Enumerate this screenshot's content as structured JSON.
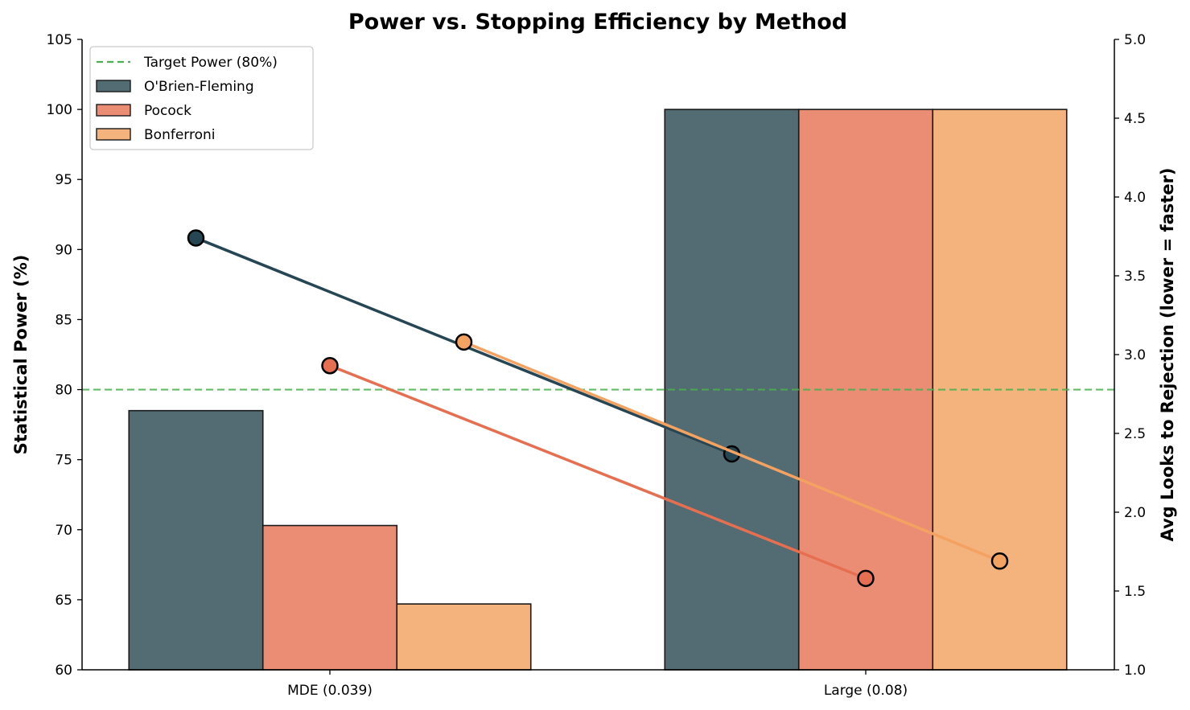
{
  "chart_data": {
    "type": "bar",
    "title": "Power vs. Stopping Efficiency by Method",
    "categories": [
      "MDE (0.039)",
      "Large (0.08)"
    ],
    "ylabel": "Statistical Power (%)",
    "ylim": [
      60,
      105
    ],
    "yticks": [
      60,
      65,
      70,
      75,
      80,
      85,
      90,
      95,
      100,
      105
    ],
    "y2label": "Avg Looks to Rejection (lower = faster)",
    "y2lim": [
      1.0,
      5.0
    ],
    "y2ticks": [
      "1.0",
      "1.5",
      "2.0",
      "2.5",
      "3.0",
      "3.5",
      "4.0",
      "4.5",
      "5.0"
    ],
    "series": [
      {
        "name": "O'Brien-Fleming",
        "values": [
          78.5,
          100.0
        ],
        "bar_color": "#536b73",
        "line_color": "#264653",
        "looks": [
          3.74,
          2.37
        ]
      },
      {
        "name": "Pocock",
        "values": [
          70.3,
          100.0
        ],
        "bar_color": "#eb8d75",
        "line_color": "#e76f51",
        "looks": [
          2.93,
          1.58
        ]
      },
      {
        "name": "Bonferroni",
        "values": [
          64.7,
          100.0
        ],
        "bar_color": "#f4b27d",
        "line_color": "#f4a261",
        "looks": [
          3.08,
          1.69
        ]
      }
    ],
    "reference_line": {
      "label": "Target Power (80%)",
      "value": 80,
      "color": "#4caf50"
    },
    "legend_position": "top-left",
    "grid": false
  }
}
